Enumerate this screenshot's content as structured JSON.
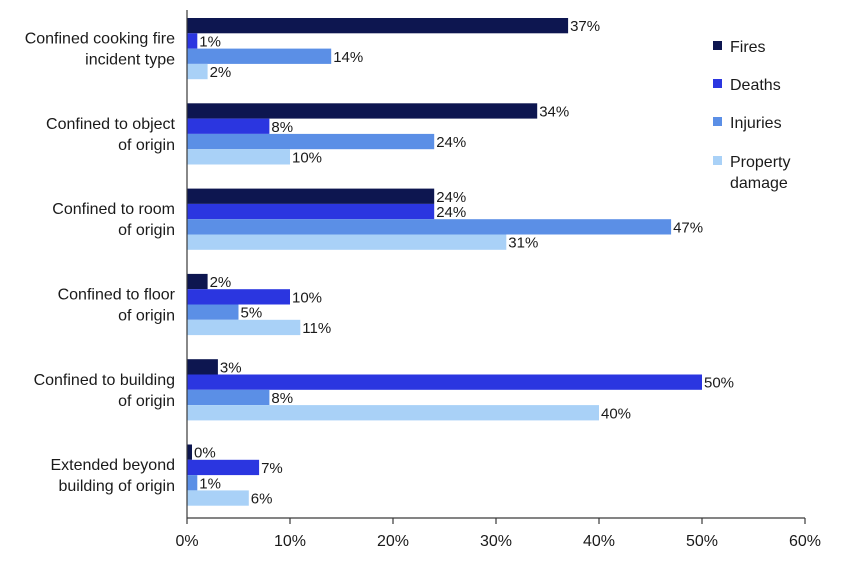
{
  "chart_data": {
    "type": "bar",
    "orientation": "horizontal",
    "categories": [
      [
        "Confined cooking fire",
        "incident type"
      ],
      [
        "Confined to object",
        "of origin"
      ],
      [
        "Confined to room",
        "of origin"
      ],
      [
        "Confined to floor",
        "of origin"
      ],
      [
        "Confined to building",
        "of origin"
      ],
      [
        "Extended beyond",
        "building of origin"
      ]
    ],
    "series": [
      {
        "name": "Fires",
        "color": "#0d1650",
        "values": [
          37,
          34,
          24,
          2,
          3,
          0
        ]
      },
      {
        "name": "Deaths",
        "color": "#2b36e0",
        "values": [
          1,
          8,
          24,
          10,
          50,
          7
        ]
      },
      {
        "name": "Injuries",
        "color": "#5b8fe6",
        "values": [
          14,
          24,
          47,
          5,
          8,
          1
        ]
      },
      {
        "name": "Property damage",
        "legend_lines": [
          "Property",
          "damage"
        ],
        "color": "#a9d1f7",
        "values": [
          2,
          10,
          31,
          11,
          40,
          6
        ]
      }
    ],
    "value_suffix": "%",
    "xlim": [
      0,
      60
    ],
    "xticks": [
      0,
      10,
      20,
      30,
      40,
      50,
      60
    ],
    "xtick_labels": [
      "0%",
      "10%",
      "20%",
      "30%",
      "40%",
      "50%",
      "60%"
    ],
    "grid": false,
    "legend_position": "right"
  }
}
